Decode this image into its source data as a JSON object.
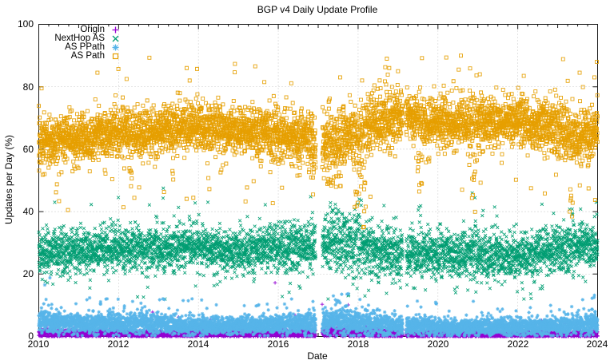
{
  "title": "BGP v4 Daily Update Profile",
  "axes": {
    "x_label": "Date",
    "y_label": "Updates per Day (%)",
    "x_tick_labels": [
      "2010",
      "2012",
      "2014",
      "2016",
      "2018",
      "2020",
      "2022",
      "2024"
    ],
    "y_tick_labels": [
      "0",
      "20",
      "40",
      "60",
      "80",
      "100"
    ]
  },
  "colors": {
    "background": "#ffffff",
    "border": "#1a1a1a",
    "grid": "#b0b0b0",
    "text": "#000000"
  },
  "chart_data": {
    "type": "scatter",
    "title": "BGP v4 Daily Update Profile",
    "xlabel": "Date",
    "ylabel": "Updates per Day (%)",
    "xlim": [
      2010,
      2024
    ],
    "ylim": [
      0,
      100
    ],
    "x_major_ticks": [
      2010,
      2012,
      2014,
      2016,
      2018,
      2020,
      2022,
      2024
    ],
    "x_minor_step": 0.25,
    "y_major_ticks": [
      0,
      20,
      40,
      60,
      80,
      100
    ],
    "grid": "dotted-at-major-ticks",
    "legend_position": "top-left-inside",
    "points_per_year": 350,
    "data_gaps": [
      [
        2016.94,
        2017.1
      ],
      [
        2019.12,
        2019.2
      ]
    ],
    "series": [
      {
        "name": "Origin",
        "marker": "plus",
        "color": "#9400D3",
        "band": [
          [
            2010,
            1.0,
            0.65
          ],
          [
            2012,
            0.9,
            0.6
          ],
          [
            2014,
            0.8,
            0.55
          ],
          [
            2016,
            0.9,
            0.6
          ],
          [
            2017.3,
            1.2,
            0.8
          ],
          [
            2018.2,
            1.1,
            0.75
          ],
          [
            2019,
            0.7,
            0.5
          ],
          [
            2021,
            0.6,
            0.5
          ],
          [
            2023,
            0.7,
            0.5
          ],
          [
            2024,
            0.8,
            0.55
          ]
        ],
        "spikes": [
          [
            2010.17,
            0.08,
            5,
            0.3
          ],
          [
            2017.5,
            0.6,
            3.2,
            0.2
          ]
        ],
        "hi_tail": [
          0.012,
          3.5
        ],
        "lo_tail": [
          0,
          0
        ],
        "clamp": [
          0.08,
          18
        ],
        "outliers": [
          [
            2015.92,
            17.2
          ],
          [
            2017.1,
            10.3
          ],
          [
            2017.75,
            10.1
          ],
          [
            2012.85,
            7.8
          ],
          [
            2010.84,
            5.9
          ],
          [
            2013.5,
            6.2
          ],
          [
            2016.42,
            6.8
          ],
          [
            2019.8,
            5.0
          ],
          [
            2021.3,
            4.4
          ],
          [
            2022.6,
            5.1
          ],
          [
            2023.2,
            4.2
          ],
          [
            2014.3,
            5.5
          ]
        ]
      },
      {
        "name": "NextHop AS",
        "marker": "cross",
        "color": "#009E73",
        "band": [
          [
            2010,
            27,
            3.4
          ],
          [
            2011,
            27.5,
            3.4
          ],
          [
            2012,
            28,
            3.5
          ],
          [
            2013,
            28,
            3.6
          ],
          [
            2014,
            28.5,
            3.4
          ],
          [
            2015,
            27.5,
            3.4
          ],
          [
            2016,
            28.5,
            3.8
          ],
          [
            2016.9,
            29,
            4
          ],
          [
            2017.3,
            29.5,
            4.8
          ],
          [
            2018,
            29.5,
            5
          ],
          [
            2018.6,
            26.5,
            4
          ],
          [
            2019.3,
            26,
            4
          ],
          [
            2020,
            26.5,
            4
          ],
          [
            2021,
            26,
            4
          ],
          [
            2022,
            26,
            3.8
          ],
          [
            2022.8,
            27,
            4
          ],
          [
            2023.4,
            28.5,
            3.8
          ],
          [
            2023.8,
            29.5,
            3.4
          ],
          [
            2024,
            28.5,
            3.4
          ]
        ],
        "spikes": [
          [
            2010.35,
            0.05,
            42,
            0.2
          ],
          [
            2013.1,
            0.05,
            46,
            0.18
          ],
          [
            2017.45,
            0.4,
            42,
            0.14
          ],
          [
            2018.0,
            0.3,
            45,
            0.12
          ],
          [
            2019.55,
            0.12,
            44,
            0.2
          ],
          [
            2020.9,
            0.1,
            47,
            0.25
          ],
          [
            2021.1,
            0.07,
            42,
            0.15
          ],
          [
            2023.35,
            0.1,
            41,
            0.2
          ],
          [
            2023.6,
            0.18,
            38,
            0.12
          ]
        ],
        "hi_tail": [
          0.006,
          14
        ],
        "lo_tail": [
          0.008,
          13
        ],
        "clamp": [
          12,
          55
        ],
        "outliers": [
          [
            2013.12,
            47.5
          ],
          [
            2010.4,
            43
          ],
          [
            2016.55,
            15.5
          ],
          [
            2016.3,
            17
          ]
        ]
      },
      {
        "name": "AS PPath",
        "marker": "asterisk",
        "color": "#56B4E9",
        "band": [
          [
            2010,
            4.6,
            1.9
          ],
          [
            2011,
            4.2,
            1.7
          ],
          [
            2012,
            4.2,
            1.7
          ],
          [
            2013,
            4.0,
            1.6
          ],
          [
            2014,
            3.6,
            1.5
          ],
          [
            2015,
            3.4,
            1.4
          ],
          [
            2016,
            3.6,
            1.5
          ],
          [
            2017.2,
            4.6,
            2.1
          ],
          [
            2018,
            4.6,
            2.2
          ],
          [
            2019,
            3.4,
            1.6
          ],
          [
            2020,
            3.0,
            1.4
          ],
          [
            2021,
            3.0,
            1.4
          ],
          [
            2022,
            3.2,
            1.5
          ],
          [
            2023,
            3.2,
            1.5
          ],
          [
            2024,
            3.9,
            1.7
          ]
        ],
        "spikes": [
          [
            2010.2,
            0.18,
            15,
            0.09
          ],
          [
            2010.33,
            0.05,
            19,
            0.12
          ],
          [
            2014.4,
            0.05,
            11,
            0.12
          ],
          [
            2016.2,
            0.04,
            10,
            0.12
          ],
          [
            2017.6,
            0.5,
            12,
            0.05
          ],
          [
            2018.0,
            0.15,
            14,
            0.08
          ],
          [
            2022.3,
            0.05,
            10,
            0.15
          ],
          [
            2023.9,
            0.07,
            13,
            0.15
          ]
        ],
        "hi_tail": [
          0.02,
          7
        ],
        "lo_tail": [
          0,
          0
        ],
        "clamp": [
          0.3,
          21
        ],
        "outliers": [
          [
            2010.28,
            18.8
          ],
          [
            2010.15,
            16.5
          ],
          [
            2023.92,
            13.2
          ]
        ]
      },
      {
        "name": "AS Path",
        "marker": "square",
        "color": "#E69F00",
        "band": [
          [
            2010,
            62.5,
            4.2
          ],
          [
            2011,
            64,
            4
          ],
          [
            2012,
            65,
            4
          ],
          [
            2013,
            66,
            3.8
          ],
          [
            2014,
            67,
            3.8
          ],
          [
            2015,
            66,
            3.9
          ],
          [
            2016,
            64.5,
            4.2
          ],
          [
            2016.9,
            63,
            4.5
          ],
          [
            2017.3,
            62.5,
            5.5
          ],
          [
            2018,
            65.5,
            5.2
          ],
          [
            2018.6,
            70,
            4.6
          ],
          [
            2019.3,
            70,
            4.2
          ],
          [
            2020,
            68.5,
            4
          ],
          [
            2021,
            68.5,
            4.2
          ],
          [
            2022,
            69,
            4
          ],
          [
            2022.8,
            67,
            4.2
          ],
          [
            2023.4,
            64.5,
            4.6
          ],
          [
            2023.8,
            64,
            4.4
          ],
          [
            2024,
            68,
            4.6
          ]
        ],
        "spikes": [
          [
            2010.9,
            0.05,
            50,
            0.2
          ],
          [
            2012.3,
            0.06,
            48,
            0.18
          ],
          [
            2013.35,
            0.05,
            45,
            0.2
          ],
          [
            2014.55,
            0.05,
            50,
            0.18
          ],
          [
            2015.8,
            0.04,
            52,
            0.15
          ],
          [
            2016.85,
            0.06,
            50,
            0.2
          ],
          [
            2017.45,
            0.4,
            47,
            0.16
          ],
          [
            2017.98,
            0.22,
            38,
            0.2
          ],
          [
            2018.15,
            0.08,
            30,
            0.22
          ],
          [
            2019.55,
            0.12,
            42,
            0.25
          ],
          [
            2019.75,
            0.1,
            50,
            0.18
          ],
          [
            2020.9,
            0.1,
            35,
            0.3
          ],
          [
            2021.1,
            0.07,
            46,
            0.2
          ],
          [
            2023.35,
            0.1,
            36,
            0.25
          ],
          [
            2023.6,
            0.18,
            47,
            0.14
          ]
        ],
        "hi_tail": [
          0.008,
          20
        ],
        "lo_tail": [
          0.01,
          20
        ],
        "clamp": [
          28,
          95
        ],
        "outliers": [
          [
            2010.07,
            79.5
          ],
          [
            2011.47,
            84.5
          ],
          [
            2012.2,
            82.5
          ],
          [
            2013.78,
            82
          ],
          [
            2015.65,
            81.5
          ],
          [
            2017.55,
            83
          ],
          [
            2018.72,
            89
          ],
          [
            2018.78,
            86
          ],
          [
            2019.0,
            85
          ],
          [
            2020.52,
            85.5
          ],
          [
            2021.05,
            84
          ],
          [
            2022.15,
            83.5
          ],
          [
            2023.55,
            84.5
          ],
          [
            2023.92,
            83
          ],
          [
            2023.98,
            88
          ]
        ]
      }
    ]
  }
}
